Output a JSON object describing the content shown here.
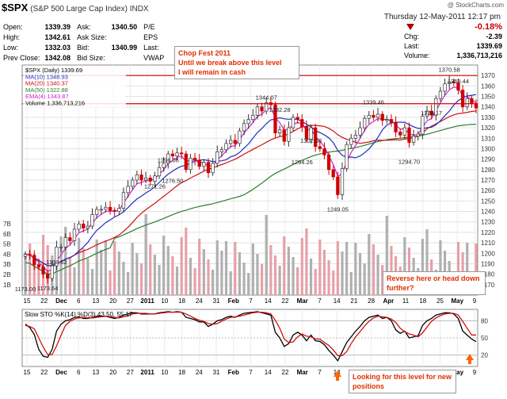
{
  "header": {
    "symbol": "$SPX",
    "name": "(S&P 500 Large Cap Index) INDX",
    "date": "Thursday 12-May-2011 12:17 pm",
    "logo": "@ StockCharts.com",
    "quotes": [
      {
        "label": "Open:",
        "value": "1339.39",
        "label2": "Ask:",
        "value2": "1340.50",
        "label3": "P/E",
        "value3": ""
      },
      {
        "label": "High:",
        "value": "1342.61",
        "label2": "Ask Size:",
        "value2": "",
        "label3": "EPS",
        "value3": ""
      },
      {
        "label": "Low:",
        "value": "1332.03",
        "label2": "Bid:",
        "value2": "1340.99",
        "label3": "Last:",
        "value3": ""
      },
      {
        "label": "Prev Close:",
        "value": "1342.08",
        "label2": "Bid Size:",
        "value2": "",
        "label3": "VWAP",
        "value3": ""
      }
    ],
    "change_pct": "-0.18%",
    "chg_label": "Chg:",
    "chg_value": "-2.39",
    "last_label": "Last:",
    "last_value": "1339.69",
    "volume_label": "Volume:",
    "volume_value": "1,336,713,216"
  },
  "legend": [
    {
      "text": "$SPX (Daily) 1339.69",
      "color": "#000000"
    },
    {
      "text": "MA(10) 1348.93",
      "color": "#1f2fbf"
    },
    {
      "text": "MA(20) 1340.37",
      "color": "#d01010"
    },
    {
      "text": "MA(50) 1322.88",
      "color": "#2e7d2e"
    },
    {
      "text": "EMA(4) 1343.87",
      "color": "#d020d0"
    },
    {
      "text": "Volume 1,336,713,216",
      "color": "#000000"
    }
  ],
  "annotations": {
    "top": [
      "Chop Fest 2011",
      "Until we break above this level",
      "I will remain in cash"
    ],
    "right": [
      "Reverse here or head down",
      "further?"
    ],
    "bottom": [
      "Looking for this level for new",
      "positions"
    ]
  },
  "stoch_label": "Slow STO %K(14) %D(3) 43.50, 55.17",
  "chart_data": [
    {
      "type": "line",
      "title": "$SPX (Daily) 1339.69",
      "ylim": [
        1160,
        1380
      ],
      "y_ticks": [
        1170,
        1180,
        1190,
        1200,
        1210,
        1220,
        1230,
        1240,
        1250,
        1260,
        1270,
        1280,
        1290,
        1300,
        1310,
        1320,
        1330,
        1340,
        1350,
        1360,
        1370
      ],
      "volume_ticks": [
        "7B",
        "6B",
        "5B",
        "4B",
        "3B",
        "2B",
        "1B"
      ],
      "x_ticks": [
        "15",
        "22",
        "Dec",
        "6",
        "13",
        "20",
        "27",
        "2011",
        "10",
        "18",
        "24",
        "31",
        "Feb",
        "7",
        "14",
        "22",
        "Mar",
        "7",
        "14",
        "21",
        "28",
        "Apr",
        "11",
        "18",
        "25",
        "May",
        "9"
      ],
      "bold_x_ticks": [
        "Dec",
        "2011",
        "Feb",
        "Mar",
        "Apr",
        "May"
      ],
      "horizontal_lines": [
        1370,
        1343
      ],
      "price_labels": [
        {
          "text": "1173.00",
          "value": 1173
        },
        {
          "text": "1173.64",
          "value": 1173.64
        },
        {
          "text": "1198.62",
          "value": 1198.62
        },
        {
          "text": "1271.26",
          "value": 1271.26
        },
        {
          "text": "1276.50",
          "value": 1276.5
        },
        {
          "text": "1296.06",
          "value": 1296.06
        },
        {
          "text": "1344.07",
          "value": 1344.07
        },
        {
          "text": "1332.28",
          "value": 1332.28
        },
        {
          "text": "1294.26",
          "value": 1294.26
        },
        {
          "text": "1302.58",
          "value": 1302.58
        },
        {
          "text": "1249.05",
          "value": 1249.05
        },
        {
          "text": "1339.46",
          "value": 1339.46
        },
        {
          "text": "1294.70",
          "value": 1294.7
        },
        {
          "text": "1329.17",
          "value": 1329.17
        },
        {
          "text": "1370.58",
          "value": 1370.58
        },
        {
          "text": "1359.44",
          "value": 1359.44
        }
      ],
      "close": [
        1199,
        1198,
        1189,
        1187,
        1180,
        1176,
        1188,
        1206,
        1206,
        1215,
        1212,
        1223,
        1228,
        1224,
        1226,
        1237,
        1242,
        1242,
        1244,
        1241,
        1240,
        1243,
        1258,
        1264,
        1270,
        1275,
        1270,
        1272,
        1269,
        1274,
        1282,
        1286,
        1295,
        1293,
        1296,
        1295,
        1280,
        1291,
        1289,
        1283,
        1287,
        1277,
        1286,
        1297,
        1299,
        1305,
        1308,
        1305,
        1317,
        1324,
        1328,
        1332,
        1340,
        1336,
        1344,
        1342,
        1315,
        1318,
        1307,
        1320,
        1330,
        1328,
        1321,
        1309,
        1320,
        1302,
        1300,
        1294,
        1280,
        1273,
        1256,
        1281,
        1304,
        1310,
        1313,
        1320,
        1329,
        1332,
        1330,
        1333,
        1327,
        1328,
        1325,
        1316,
        1313,
        1320,
        1306,
        1312,
        1314,
        1331,
        1336,
        1332,
        1348,
        1355,
        1362,
        1364,
        1363,
        1356,
        1340,
        1348,
        1343,
        1339
      ],
      "series": [
        {
          "name": "MA(10)",
          "last": 1348.93
        },
        {
          "name": "MA(20)",
          "last": 1340.37
        },
        {
          "name": "MA(50)",
          "last": 1322.88
        },
        {
          "name": "EMA(4)",
          "last": 1343.87
        },
        {
          "name": "Volume",
          "last": 1336713216
        }
      ]
    },
    {
      "type": "line",
      "title": "Slow STO %K(14) %D(3) 43.50, 55.17",
      "ylim": [
        0,
        100
      ],
      "y_ticks": [
        20,
        50,
        80
      ],
      "series": [
        {
          "name": "%K",
          "color": "#000000",
          "values": [
            74,
            68,
            56,
            30,
            18,
            16,
            30,
            62,
            74,
            80,
            82,
            86,
            87,
            84,
            84,
            86,
            88,
            88,
            88,
            86,
            84,
            86,
            90,
            92,
            94,
            94,
            92,
            92,
            92,
            92,
            94,
            95,
            96,
            95,
            96,
            95,
            86,
            84,
            82,
            78,
            78,
            70,
            74,
            80,
            82,
            86,
            88,
            86,
            90,
            93,
            94,
            95,
            96,
            94,
            92,
            90,
            60,
            50,
            35,
            40,
            55,
            60,
            55,
            45,
            55,
            45,
            44,
            38,
            28,
            20,
            10,
            26,
            42,
            52,
            62,
            70,
            80,
            86,
            88,
            90,
            84,
            86,
            80,
            64,
            58,
            62,
            50,
            52,
            54,
            72,
            80,
            84,
            90,
            92,
            94,
            94,
            92,
            84,
            62,
            55,
            48,
            43.5
          ]
        },
        {
          "name": "%D",
          "color": "#d01010",
          "values": [
            72,
            70,
            66,
            50,
            34,
            21,
            21,
            36,
            55,
            72,
            79,
            83,
            85,
            86,
            85,
            85,
            86,
            87,
            88,
            87,
            86,
            85,
            87,
            89,
            92,
            93,
            93,
            93,
            92,
            92,
            93,
            94,
            95,
            95,
            95,
            95,
            92,
            88,
            84,
            81,
            79,
            75,
            74,
            75,
            79,
            83,
            86,
            87,
            88,
            90,
            92,
            94,
            95,
            95,
            94,
            92,
            81,
            67,
            48,
            42,
            43,
            52,
            57,
            53,
            52,
            48,
            48,
            42,
            37,
            29,
            19,
            19,
            26,
            40,
            52,
            61,
            71,
            79,
            85,
            88,
            87,
            86,
            83,
            77,
            67,
            61,
            57,
            55,
            52,
            59,
            69,
            79,
            85,
            89,
            92,
            93,
            93,
            90,
            79,
            67,
            55,
            55.17
          ]
        }
      ]
    }
  ]
}
